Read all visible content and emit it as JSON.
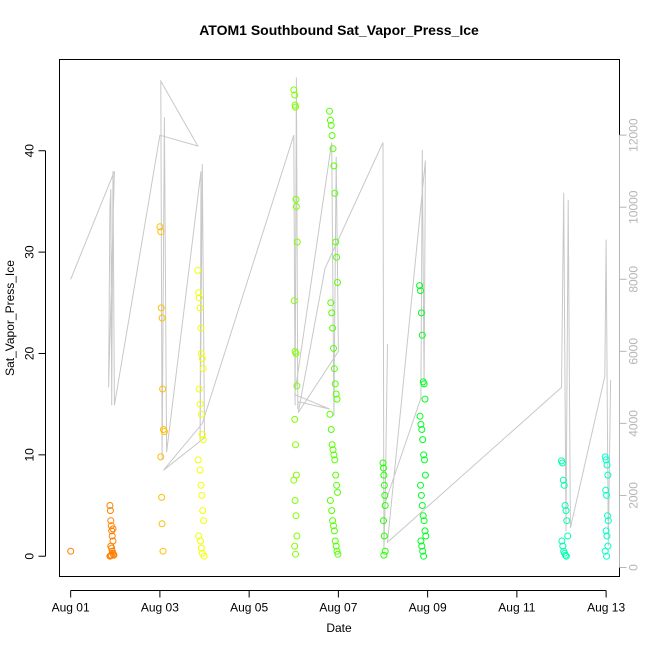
{
  "chart_data": {
    "type": "scatter",
    "title": "ATOM1 Southbound Sat_Vapor_Press_Ice",
    "xlabel": "Date",
    "ylabel": "Sat_Vapor_Press_Ice",
    "x_ticks": [
      "Aug 01",
      "Aug 03",
      "Aug 05",
      "Aug 07",
      "Aug 09",
      "Aug 11",
      "Aug 13"
    ],
    "xlim_days": [
      0.75,
      13.3
    ],
    "ylim": [
      -2,
      49
    ],
    "y_ticks": [
      0,
      10,
      20,
      30,
      40
    ],
    "y2_ticks": [
      0,
      2000,
      4000,
      6000,
      8000,
      10000,
      12000
    ],
    "y2lim": [
      -250,
      14100
    ],
    "grid": false,
    "legend": "none",
    "colors": {
      "secondary_line": "#c8c8c8",
      "secondary_axis": "#b5b5b5"
    },
    "series": [
      {
        "role": "points",
        "color": "#ff8000",
        "x": [
          1.0,
          1.88,
          1.89,
          1.9,
          1.91,
          1.92,
          1.93,
          1.95,
          1.9,
          1.92,
          1.93,
          1.94,
          1.96,
          1.97,
          1.88,
          1.9,
          1.91,
          1.95
        ],
        "y": [
          0.5,
          5.0,
          4.5,
          3.5,
          3.0,
          2.5,
          2.0,
          1.5,
          1.0,
          0.8,
          0.5,
          0.3,
          0.2,
          0.1,
          0.0,
          0.05,
          0.1,
          2.7
        ]
      },
      {
        "role": "points",
        "color": "#ffbf00",
        "x": [
          3.0,
          3.02,
          3.03,
          3.05,
          3.06,
          3.08,
          3.1,
          3.02,
          3.04,
          3.05,
          3.07
        ],
        "y": [
          32.5,
          32.0,
          24.5,
          23.5,
          16.5,
          12.5,
          12.3,
          9.8,
          5.8,
          3.2,
          0.5
        ]
      },
      {
        "role": "points",
        "color": "#f2ff00",
        "x": [
          3.85,
          3.87,
          3.88,
          3.9,
          3.92,
          3.93,
          3.95,
          3.97,
          3.88,
          3.9,
          3.93,
          3.95,
          3.97,
          3.86,
          3.9,
          3.92,
          3.94,
          3.96,
          3.98,
          3.87,
          3.91,
          3.93,
          3.95,
          3.99
        ],
        "y": [
          28.2,
          26.0,
          25.5,
          24.5,
          22.5,
          20.0,
          19.5,
          18.5,
          16.5,
          15.0,
          14.0,
          12.0,
          11.5,
          9.5,
          8.5,
          7.0,
          6.0,
          4.5,
          3.5,
          2.0,
          1.5,
          0.8,
          0.3,
          0.0
        ]
      },
      {
        "role": "points",
        "color": "#80ff00",
        "x": [
          6.0,
          6.02,
          6.03,
          6.04,
          6.05,
          6.06,
          6.08,
          6.01,
          6.03,
          6.05,
          6.07,
          6.02,
          6.04,
          6.06,
          6.0,
          6.03,
          6.05,
          6.07,
          6.02,
          6.04
        ],
        "y": [
          46.0,
          45.5,
          44.5,
          44.3,
          35.2,
          34.5,
          31.0,
          25.2,
          20.2,
          20.0,
          16.8,
          13.5,
          11.0,
          8.0,
          7.5,
          5.5,
          4.0,
          2.0,
          1.0,
          0.2
        ]
      },
      {
        "role": "points",
        "color": "#55ff00",
        "x": [
          6.8,
          6.82,
          6.84,
          6.86,
          6.88,
          6.9,
          6.92,
          6.94,
          6.96,
          6.98,
          6.83,
          6.85,
          6.87,
          6.89,
          6.91,
          6.93,
          6.95,
          6.97,
          6.81,
          6.84,
          6.86,
          6.88,
          6.9,
          6.92,
          6.94,
          6.96,
          6.98,
          6.82,
          6.85,
          6.87,
          6.89,
          6.91,
          6.93,
          6.95,
          6.97,
          6.99
        ],
        "y": [
          43.9,
          43.0,
          42.5,
          41.5,
          40.2,
          38.5,
          35.8,
          31.0,
          29.5,
          27.0,
          25.0,
          24.0,
          22.5,
          20.5,
          18.5,
          17.0,
          16.0,
          15.5,
          14.0,
          12.5,
          11.0,
          10.5,
          10.0,
          9.5,
          8.0,
          7.0,
          6.3,
          5.5,
          4.5,
          3.5,
          3.0,
          2.5,
          1.5,
          1.0,
          0.5,
          0.2
        ]
      },
      {
        "role": "points",
        "color": "#25ff00",
        "x": [
          8.0,
          8.01,
          8.02,
          8.03,
          8.04,
          8.05,
          8.01,
          8.03,
          8.05,
          8.02
        ],
        "y": [
          9.2,
          8.7,
          8.0,
          7.0,
          6.0,
          5.0,
          3.5,
          2.0,
          0.5,
          0.1
        ]
      },
      {
        "role": "points",
        "color": "#00ff20",
        "x": [
          8.82,
          8.84,
          8.86,
          8.88,
          8.9,
          8.92,
          8.94,
          8.83,
          8.85,
          8.87,
          8.89,
          8.91,
          8.93,
          8.95,
          8.84,
          8.86,
          8.88,
          8.9,
          8.92,
          8.94,
          8.96,
          8.85,
          8.87,
          8.89,
          8.91
        ],
        "y": [
          26.7,
          26.2,
          24.0,
          21.8,
          17.2,
          17.0,
          15.5,
          13.8,
          13.0,
          12.5,
          11.5,
          10.0,
          9.5,
          8.0,
          7.0,
          6.0,
          5.0,
          4.0,
          3.5,
          2.5,
          2.0,
          1.5,
          1.0,
          0.5,
          0.0
        ]
      },
      {
        "role": "points",
        "color": "#00ffb0",
        "x": [
          12.0,
          12.02,
          12.04,
          12.06,
          12.08,
          12.1,
          12.12,
          12.14,
          12.01,
          12.03,
          12.05,
          12.07,
          12.09,
          12.11
        ],
        "y": [
          9.4,
          9.2,
          7.5,
          7.0,
          5.0,
          4.5,
          3.5,
          2.0,
          1.5,
          1.0,
          0.5,
          0.3,
          0.1,
          0.0
        ]
      },
      {
        "role": "points",
        "color": "#00ffc8",
        "x": [
          12.98,
          13.0,
          13.02,
          13.04,
          12.99,
          13.01,
          13.03,
          13.05,
          13.0,
          13.02,
          13.04,
          12.98,
          13.01
        ],
        "y": [
          9.8,
          9.5,
          9.0,
          8.0,
          6.5,
          6.0,
          4.0,
          3.5,
          2.5,
          2.0,
          1.0,
          0.5,
          0.0
        ]
      },
      {
        "role": "secondary_line",
        "axis": "right",
        "color": "#c8c8c8",
        "x": [
          1.0,
          1.98,
          1.85,
          1.88,
          1.9,
          1.92,
          1.95,
          1.98,
          3.0,
          3.85,
          3.02,
          3.05,
          3.1,
          3.15,
          3.92,
          3.9,
          3.95,
          4.0,
          3.08,
          3.95,
          6.0,
          6.03,
          6.06,
          6.09,
          6.1,
          6.8,
          6.02,
          6.85,
          6.9,
          6.95,
          7.0,
          6.1,
          6.7,
          8.0,
          8.02,
          8.05,
          8.1,
          8.05,
          8.85,
          8.88,
          8.92,
          8.95,
          8.1,
          12.0,
          12.05,
          12.1,
          12.15,
          12.2,
          12.97,
          13.0,
          13.05,
          13.1
        ],
        "y": [
          8000,
          11000,
          5000,
          10000,
          10500,
          4500,
          11000,
          4500,
          12000,
          11700,
          13500,
          3000,
          12500,
          3200,
          11000,
          3500,
          11200,
          3600,
          2700,
          4000,
          12000,
          4500,
          13600,
          4400,
          4600,
          4400,
          4800,
          11800,
          4200,
          11400,
          6000,
          4300,
          8300,
          11800,
          500,
          1800,
          6200,
          1800,
          4700,
          11600,
          5000,
          11300,
          700,
          5000,
          10400,
          1000,
          10200,
          1100,
          5300,
          9100,
          600,
          5200
        ]
      }
    ]
  }
}
